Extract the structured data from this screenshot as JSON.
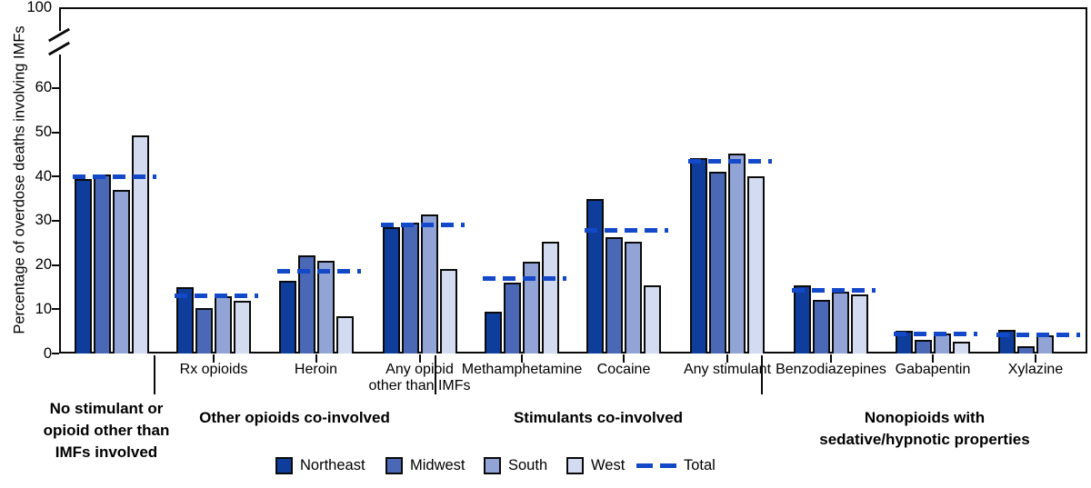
{
  "chart_data": {
    "type": "bar",
    "title": "",
    "ylabel": "Percentage of overdose deaths involving IMFs",
    "y_axis": {
      "ticks": [
        0,
        10,
        20,
        30,
        40,
        50,
        60
      ],
      "top_tick": "100",
      "axis_break_between": [
        60,
        100
      ],
      "ylim": [
        0,
        100
      ]
    },
    "series_names": [
      "Northeast",
      "Midwest",
      "South",
      "West"
    ],
    "total_series_name": "Total",
    "groups": [
      {
        "label": "No stimulant or\nopioid other than\nIMFs involved",
        "categories": [
          {
            "label": "",
            "values": [
              39.5,
              40.5,
              37.0,
              49.3
            ],
            "total": 40.0
          }
        ]
      },
      {
        "label": "Other opioids co-involved",
        "categories": [
          {
            "label": "Rx opioids",
            "values": [
              14.9,
              10.3,
              13.0,
              11.9
            ],
            "total": 13.0
          },
          {
            "label": "Heroin",
            "values": [
              16.5,
              22.1,
              20.9,
              8.5
            ],
            "total": 18.5
          },
          {
            "label": "Any opioid\nother than IMFs",
            "values": [
              28.5,
              29.6,
              31.5,
              19.0
            ],
            "total": 29.0
          }
        ]
      },
      {
        "label": "Stimulants co-involved",
        "categories": [
          {
            "label": "Methamphetamine",
            "values": [
              9.5,
              16.0,
              20.8,
              25.3
            ],
            "total": 17.0
          },
          {
            "label": "Cocaine",
            "values": [
              35.0,
              26.2,
              25.3,
              15.3
            ],
            "total": 27.8
          },
          {
            "label": "Any stimulant",
            "values": [
              44.2,
              41.0,
              45.2,
              40.0
            ],
            "total": 43.4
          }
        ]
      },
      {
        "label": "Nonopioids with\nsedative/hypnotic properties",
        "categories": [
          {
            "label": "Benzodiazepines",
            "values": [
              15.4,
              12.2,
              14.0,
              13.4
            ],
            "total": 14.3
          },
          {
            "label": "Gabapentin",
            "values": [
              5.2,
              3.0,
              4.6,
              2.7
            ],
            "total": 4.4
          },
          {
            "label": "Xylazine",
            "values": [
              5.4,
              1.7,
              4.1,
              null
            ],
            "total": 4.3
          }
        ]
      }
    ],
    "colors": {
      "northeast": "#0E3D9C",
      "midwest": "#4A68B6",
      "south": "#92A4D6",
      "west": "#D2DBEF",
      "total": "#1348C8",
      "axis": "#0a0a0a"
    },
    "legend": {
      "position": "bottom-center",
      "items": [
        {
          "label": "Northeast",
          "swatch": "northeast",
          "type": "square"
        },
        {
          "label": "Midwest",
          "swatch": "midwest",
          "type": "square"
        },
        {
          "label": "South",
          "swatch": "south",
          "type": "square"
        },
        {
          "label": "West",
          "swatch": "west",
          "type": "square"
        },
        {
          "label": "Total",
          "swatch": "total",
          "type": "dashed-line"
        }
      ]
    },
    "grid": false
  }
}
